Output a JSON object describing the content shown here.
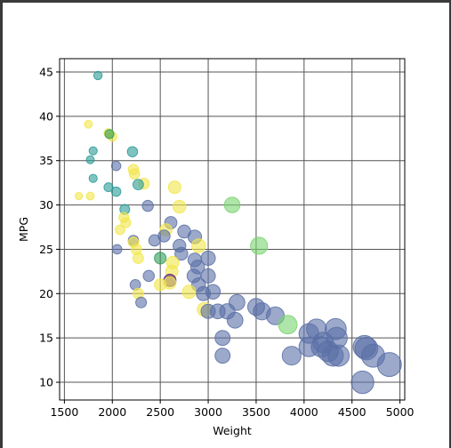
{
  "chart_data": {
    "type": "scatter",
    "title": "",
    "xlabel": "Weight",
    "ylabel": "MPG",
    "xlim": [
      1450,
      5050
    ],
    "ylim": [
      8,
      46.5
    ],
    "xticks": [
      1500,
      2000,
      2500,
      3000,
      3500,
      4000,
      4500,
      5000
    ],
    "yticks": [
      10,
      15,
      20,
      25,
      30,
      35,
      40,
      45
    ],
    "grid": true,
    "encoding": {
      "color": "origin / category (viridis-like palette)",
      "size": "marker area increases with weight"
    },
    "palette": {
      "yellow": "#f2e64a",
      "lightgreen": "#78d46e",
      "green": "#2f9c5a",
      "teal": "#2a9b96",
      "blue": "#5a6fa6",
      "purple": "#5a1a78"
    },
    "points": [
      {
        "x": 1850,
        "y": 44.6,
        "c": "teal"
      },
      {
        "x": 1750,
        "y": 39.1,
        "c": "yellow"
      },
      {
        "x": 1960,
        "y": 38.1,
        "c": "yellow"
      },
      {
        "x": 2000,
        "y": 37.7,
        "c": "yellow"
      },
      {
        "x": 1970,
        "y": 38.0,
        "c": "green"
      },
      {
        "x": 1800,
        "y": 36.1,
        "c": "teal"
      },
      {
        "x": 2210,
        "y": 36.0,
        "c": "teal"
      },
      {
        "x": 1770,
        "y": 35.1,
        "c": "teal"
      },
      {
        "x": 2040,
        "y": 34.4,
        "c": "blue"
      },
      {
        "x": 2220,
        "y": 34.0,
        "c": "yellow"
      },
      {
        "x": 2230,
        "y": 33.5,
        "c": "yellow"
      },
      {
        "x": 1800,
        "y": 33.0,
        "c": "teal"
      },
      {
        "x": 2330,
        "y": 32.4,
        "c": "yellow"
      },
      {
        "x": 2270,
        "y": 32.3,
        "c": "teal"
      },
      {
        "x": 1960,
        "y": 32.0,
        "c": "teal"
      },
      {
        "x": 2650,
        "y": 32.0,
        "c": "yellow"
      },
      {
        "x": 2040,
        "y": 31.5,
        "c": "teal"
      },
      {
        "x": 1650,
        "y": 31.0,
        "c": "yellow"
      },
      {
        "x": 1770,
        "y": 31.0,
        "c": "yellow"
      },
      {
        "x": 3250,
        "y": 30.0,
        "c": "lightgreen"
      },
      {
        "x": 2370,
        "y": 29.9,
        "c": "blue"
      },
      {
        "x": 2700,
        "y": 29.8,
        "c": "yellow"
      },
      {
        "x": 2130,
        "y": 29.5,
        "c": "teal"
      },
      {
        "x": 2120,
        "y": 28.6,
        "c": "yellow"
      },
      {
        "x": 2140,
        "y": 28.0,
        "c": "yellow"
      },
      {
        "x": 2610,
        "y": 28.0,
        "c": "blue"
      },
      {
        "x": 2080,
        "y": 27.2,
        "c": "yellow"
      },
      {
        "x": 2560,
        "y": 27.2,
        "c": "yellow"
      },
      {
        "x": 2750,
        "y": 27.0,
        "c": "blue"
      },
      {
        "x": 2540,
        "y": 26.5,
        "c": "blue"
      },
      {
        "x": 2860,
        "y": 26.4,
        "c": "blue"
      },
      {
        "x": 2220,
        "y": 26.0,
        "c": "blue"
      },
      {
        "x": 2440,
        "y": 26.0,
        "c": "blue"
      },
      {
        "x": 2220,
        "y": 25.8,
        "c": "yellow"
      },
      {
        "x": 3530,
        "y": 25.4,
        "c": "lightgreen"
      },
      {
        "x": 2700,
        "y": 25.4,
        "c": "blue"
      },
      {
        "x": 2900,
        "y": 25.4,
        "c": "yellow"
      },
      {
        "x": 2050,
        "y": 25.0,
        "c": "blue"
      },
      {
        "x": 2250,
        "y": 25.0,
        "c": "yellow"
      },
      {
        "x": 2720,
        "y": 24.5,
        "c": "blue"
      },
      {
        "x": 2270,
        "y": 24.0,
        "c": "yellow"
      },
      {
        "x": 2500,
        "y": 24.0,
        "c": "green"
      },
      {
        "x": 3000,
        "y": 24.0,
        "c": "blue"
      },
      {
        "x": 2860,
        "y": 23.8,
        "c": "blue"
      },
      {
        "x": 2630,
        "y": 23.5,
        "c": "yellow"
      },
      {
        "x": 2890,
        "y": 23.0,
        "c": "blue"
      },
      {
        "x": 2620,
        "y": 22.5,
        "c": "yellow"
      },
      {
        "x": 2380,
        "y": 22.0,
        "c": "blue"
      },
      {
        "x": 2850,
        "y": 22.0,
        "c": "blue"
      },
      {
        "x": 3000,
        "y": 22.0,
        "c": "blue"
      },
      {
        "x": 2600,
        "y": 21.5,
        "c": "purple"
      },
      {
        "x": 2600,
        "y": 21.2,
        "c": "yellow"
      },
      {
        "x": 2240,
        "y": 21.0,
        "c": "blue"
      },
      {
        "x": 2500,
        "y": 21.0,
        "c": "yellow"
      },
      {
        "x": 2900,
        "y": 21.0,
        "c": "blue"
      },
      {
        "x": 2800,
        "y": 20.2,
        "c": "yellow"
      },
      {
        "x": 2270,
        "y": 20.0,
        "c": "yellow"
      },
      {
        "x": 2950,
        "y": 20.0,
        "c": "blue"
      },
      {
        "x": 3050,
        "y": 20.2,
        "c": "blue"
      },
      {
        "x": 2300,
        "y": 19.0,
        "c": "blue"
      },
      {
        "x": 3300,
        "y": 19.0,
        "c": "blue"
      },
      {
        "x": 3500,
        "y": 18.5,
        "c": "blue"
      },
      {
        "x": 2960,
        "y": 18.2,
        "c": "yellow"
      },
      {
        "x": 3000,
        "y": 18.0,
        "c": "blue"
      },
      {
        "x": 3100,
        "y": 18.0,
        "c": "blue"
      },
      {
        "x": 3200,
        "y": 18.0,
        "c": "blue"
      },
      {
        "x": 3560,
        "y": 18.0,
        "c": "blue"
      },
      {
        "x": 3700,
        "y": 17.5,
        "c": "blue"
      },
      {
        "x": 3280,
        "y": 17.0,
        "c": "blue"
      },
      {
        "x": 3830,
        "y": 16.5,
        "c": "lightgreen"
      },
      {
        "x": 4050,
        "y": 15.5,
        "c": "blue"
      },
      {
        "x": 4130,
        "y": 16.0,
        "c": "blue"
      },
      {
        "x": 4330,
        "y": 16.0,
        "c": "blue"
      },
      {
        "x": 4340,
        "y": 15.0,
        "c": "blue"
      },
      {
        "x": 3150,
        "y": 15.0,
        "c": "blue"
      },
      {
        "x": 4200,
        "y": 14.5,
        "c": "blue"
      },
      {
        "x": 4050,
        "y": 14.0,
        "c": "blue"
      },
      {
        "x": 4180,
        "y": 14.0,
        "c": "blue"
      },
      {
        "x": 4630,
        "y": 14.0,
        "c": "blue"
      },
      {
        "x": 4650,
        "y": 13.8,
        "c": "blue"
      },
      {
        "x": 4250,
        "y": 13.5,
        "c": "blue"
      },
      {
        "x": 3150,
        "y": 13.0,
        "c": "blue"
      },
      {
        "x": 3870,
        "y": 13.0,
        "c": "blue"
      },
      {
        "x": 4300,
        "y": 13.0,
        "c": "blue"
      },
      {
        "x": 4360,
        "y": 13.0,
        "c": "blue"
      },
      {
        "x": 4720,
        "y": 13.0,
        "c": "blue"
      },
      {
        "x": 4890,
        "y": 12.0,
        "c": "blue"
      },
      {
        "x": 4610,
        "y": 10.0,
        "c": "blue"
      }
    ]
  }
}
